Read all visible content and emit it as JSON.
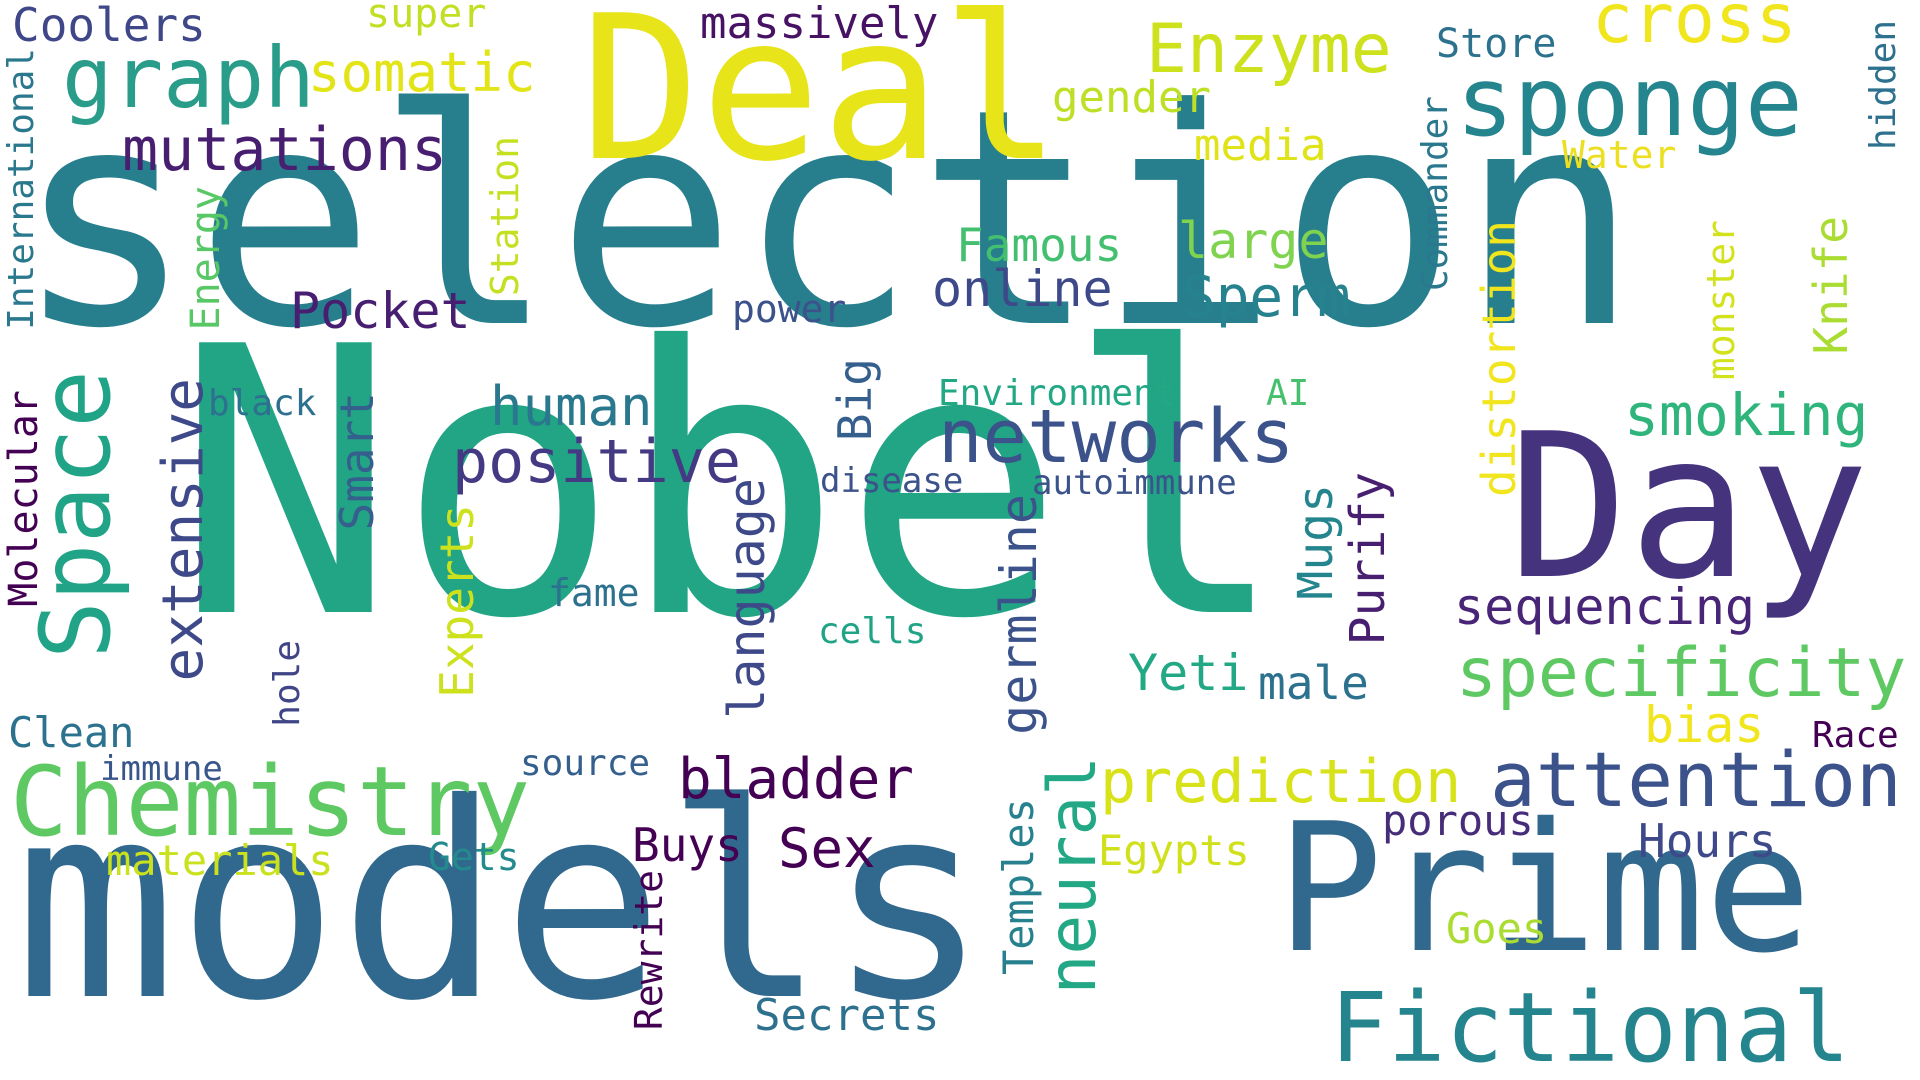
{
  "words": {
    "selection": "selection",
    "nobel": "Nobel",
    "models": "models",
    "deal": "Deal",
    "prime": "Prime",
    "day": "Day",
    "chemistry": "Chemistry",
    "fictional": "Fictional",
    "sponge": "sponge",
    "space": "Space",
    "graph": "graph",
    "networks": "networks",
    "attention": "attention",
    "specificity": "specificity",
    "enzyme": "Enzyme",
    "cross": "cross",
    "mutations": "mutations",
    "positive": "positive",
    "prediction": "prediction",
    "neural": "neural",
    "bladder": "bladder",
    "extensive": "extensive",
    "sequencing": "sequencing",
    "smoking": "smoking",
    "somatic": "somatic",
    "human": "human",
    "sperm": "Sperm",
    "online": "online",
    "pocket": "Pocket",
    "sex": "Sex",
    "large": "large",
    "famous": "Famous",
    "coolers": "Coolers",
    "massively": "massively",
    "gender": "gender",
    "media": "media",
    "water": "Water",
    "store": "Store",
    "super": "super",
    "hours": "Hours",
    "yeti": "Yeti",
    "male": "male",
    "bias": "bias",
    "race": "Race",
    "porous": "porous",
    "buys": "Buys",
    "egypts": "Egypts",
    "goes": "Goes",
    "secrets": "Secrets",
    "materials": "materials",
    "gets": "Gets",
    "clean": "Clean",
    "immune": "immune",
    "source": "source",
    "fame": "fame",
    "cells": "cells",
    "power": "power",
    "black": "black",
    "disease": "disease",
    "autoimmune": "autoimmune",
    "environment": "Environment",
    "ai": "AI",
    "international": "International",
    "molecular": "Molecular",
    "energy": "Energy",
    "station": "Station",
    "smart": "Smart",
    "big": "Big",
    "experts": "Experts",
    "language": "language",
    "germline": "germline",
    "mugs": "Mugs",
    "purify": "Purify",
    "distortion": "distortion",
    "commander": "Commander",
    "monster": "monster",
    "knife": "Knife",
    "hidden": "hidden",
    "hole": "hole",
    "temples": "Temples",
    "rewrite": "Rewrite"
  }
}
